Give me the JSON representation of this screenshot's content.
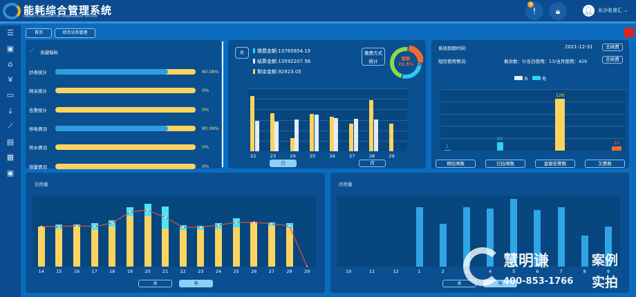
{
  "header": {
    "title": "能耗综合管理系统",
    "subtitle": "ENERGY CONSUMPTION MANAGEMENT SYSTEM",
    "alert_count": "4",
    "user": "长沙名食汇"
  },
  "breadcrumb": [
    "首页",
    "综合业务管理"
  ],
  "sidebar": {
    "icons": [
      "menu-icon",
      "dashboard-icon",
      "folder-icon",
      "yuan-icon",
      "monitor-icon",
      "download-icon",
      "line-chart-icon",
      "report-settings-icon",
      "apps-icon",
      "id-card-icon"
    ]
  },
  "indicators": {
    "title": "关键指标",
    "items": [
      {
        "label": "抄表统计",
        "value": "80.08%",
        "fill": 80.08
      },
      {
        "label": "网关统计",
        "value": "0%",
        "fill": 0
      },
      {
        "label": "告警统计",
        "value": "0%",
        "fill": 0
      },
      {
        "label": "供电情况",
        "value": "80.08%",
        "fill": 80.08
      },
      {
        "label": "供水情况",
        "value": "0%",
        "fill": 0
      },
      {
        "label": "容量情况",
        "value": "0%",
        "fill": 0
      }
    ]
  },
  "payment": {
    "total_label": "总",
    "lines": [
      "缴费金额:13765854.19",
      "结算金额:13592207.56",
      "剩余金额:92923.05"
    ],
    "method_btn": "缴费方式统计",
    "donut_label": "银联",
    "donut_value": "22.8%",
    "tabs": [
      "日",
      "月"
    ],
    "colors": {
      "paid": "#2fd3ef",
      "settled": "#e3ecf8",
      "remain": "#fbd45f"
    }
  },
  "system": {
    "expire_label": "系统到期时间:",
    "expire_value": "2021-12-31",
    "renew": "去续费",
    "sms_label": "短信使用情况:",
    "sms_value": "剩余数：0/当日使用：13/当月使用：429",
    "legend": [
      "水",
      "电"
    ],
    "buttons": [
      "预拉闸数",
      "已拉闸数",
      "金额告警数",
      "欠费数"
    ]
  },
  "daily": {
    "title": "日用量",
    "tabs": [
      "水",
      "电"
    ]
  },
  "monthly": {
    "title": "月用量",
    "tabs": [
      "水",
      "电"
    ]
  },
  "watermark": {
    "brand": "慧明谦",
    "phone": "400-853-1766",
    "tag1": "案例",
    "tag2": "实拍"
  },
  "chart_data": [
    {
      "type": "bar",
      "id": "payment-daily",
      "categories": [
        "22",
        "23",
        "24",
        "25",
        "26",
        "27",
        "28",
        "29"
      ],
      "series": [
        {
          "values": [
            80,
            55,
            19,
            54,
            50,
            40,
            74,
            40
          ],
          "color": "#fbd45f"
        },
        {
          "values": [
            44,
            43,
            46,
            53,
            48,
            47,
            46,
            0
          ],
          "color": "#e3ecf8"
        }
      ],
      "ylim": [
        0,
        91
      ],
      "grid": true
    },
    {
      "type": "pie",
      "id": "payment-method",
      "slices": [
        {
          "label": "银联",
          "value": 22.8,
          "color": "#f26a2e"
        },
        {
          "value": 2,
          "color": "#fbd45f"
        },
        {
          "value": 27,
          "color": "#2fc6ef"
        },
        {
          "value": 48.2,
          "color": "#8ed84a"
        }
      ]
    },
    {
      "type": "bar",
      "id": "alarm-counts",
      "categories": [
        "预拉闸数",
        "已拉闸数",
        "金额告警数",
        "欠费数"
      ],
      "values": [
        1,
        20,
        126,
        10
      ],
      "colors": [
        "#2fd3ef",
        "#2fd3ef",
        "#fbd45f",
        "#f26a2e"
      ],
      "ylim": [
        0,
        150
      ],
      "grid": true
    },
    {
      "type": "bar",
      "id": "daily-usage",
      "categories": [
        "14",
        "15",
        "16",
        "17",
        "18",
        "19",
        "20",
        "21",
        "22",
        "23",
        "24",
        "25",
        "26",
        "27",
        "28",
        "29"
      ],
      "series": [
        {
          "name": "电",
          "values": [
            58,
            55,
            58,
            53,
            58,
            73,
            73,
            55,
            53,
            53,
            55,
            57,
            65,
            59,
            56,
            0
          ],
          "color": "#fbd45f"
        },
        {
          "name": "水",
          "values": [
            0,
            6,
            3,
            10,
            9,
            13,
            18,
            32,
            7,
            6,
            8,
            13,
            0,
            5,
            7,
            0
          ],
          "color": "#4fe3f5"
        }
      ],
      "line": [
        58,
        58,
        59,
        58,
        63,
        79,
        82,
        71,
        57,
        57,
        60,
        64,
        64,
        62,
        59,
        0
      ],
      "line_color": "#d9553a",
      "ylim": [
        0,
        103
      ]
    },
    {
      "type": "bar",
      "id": "monthly-usage",
      "categories": [
        "10",
        "11",
        "12",
        "1",
        "2",
        "3",
        "4",
        "5",
        "6",
        "7",
        "8",
        "9"
      ],
      "values": [
        0,
        0,
        0,
        86,
        62,
        86,
        84,
        98,
        82,
        86,
        45,
        58
      ],
      "color": "#2fa5e6",
      "ylim": [
        0,
        103
      ]
    }
  ]
}
